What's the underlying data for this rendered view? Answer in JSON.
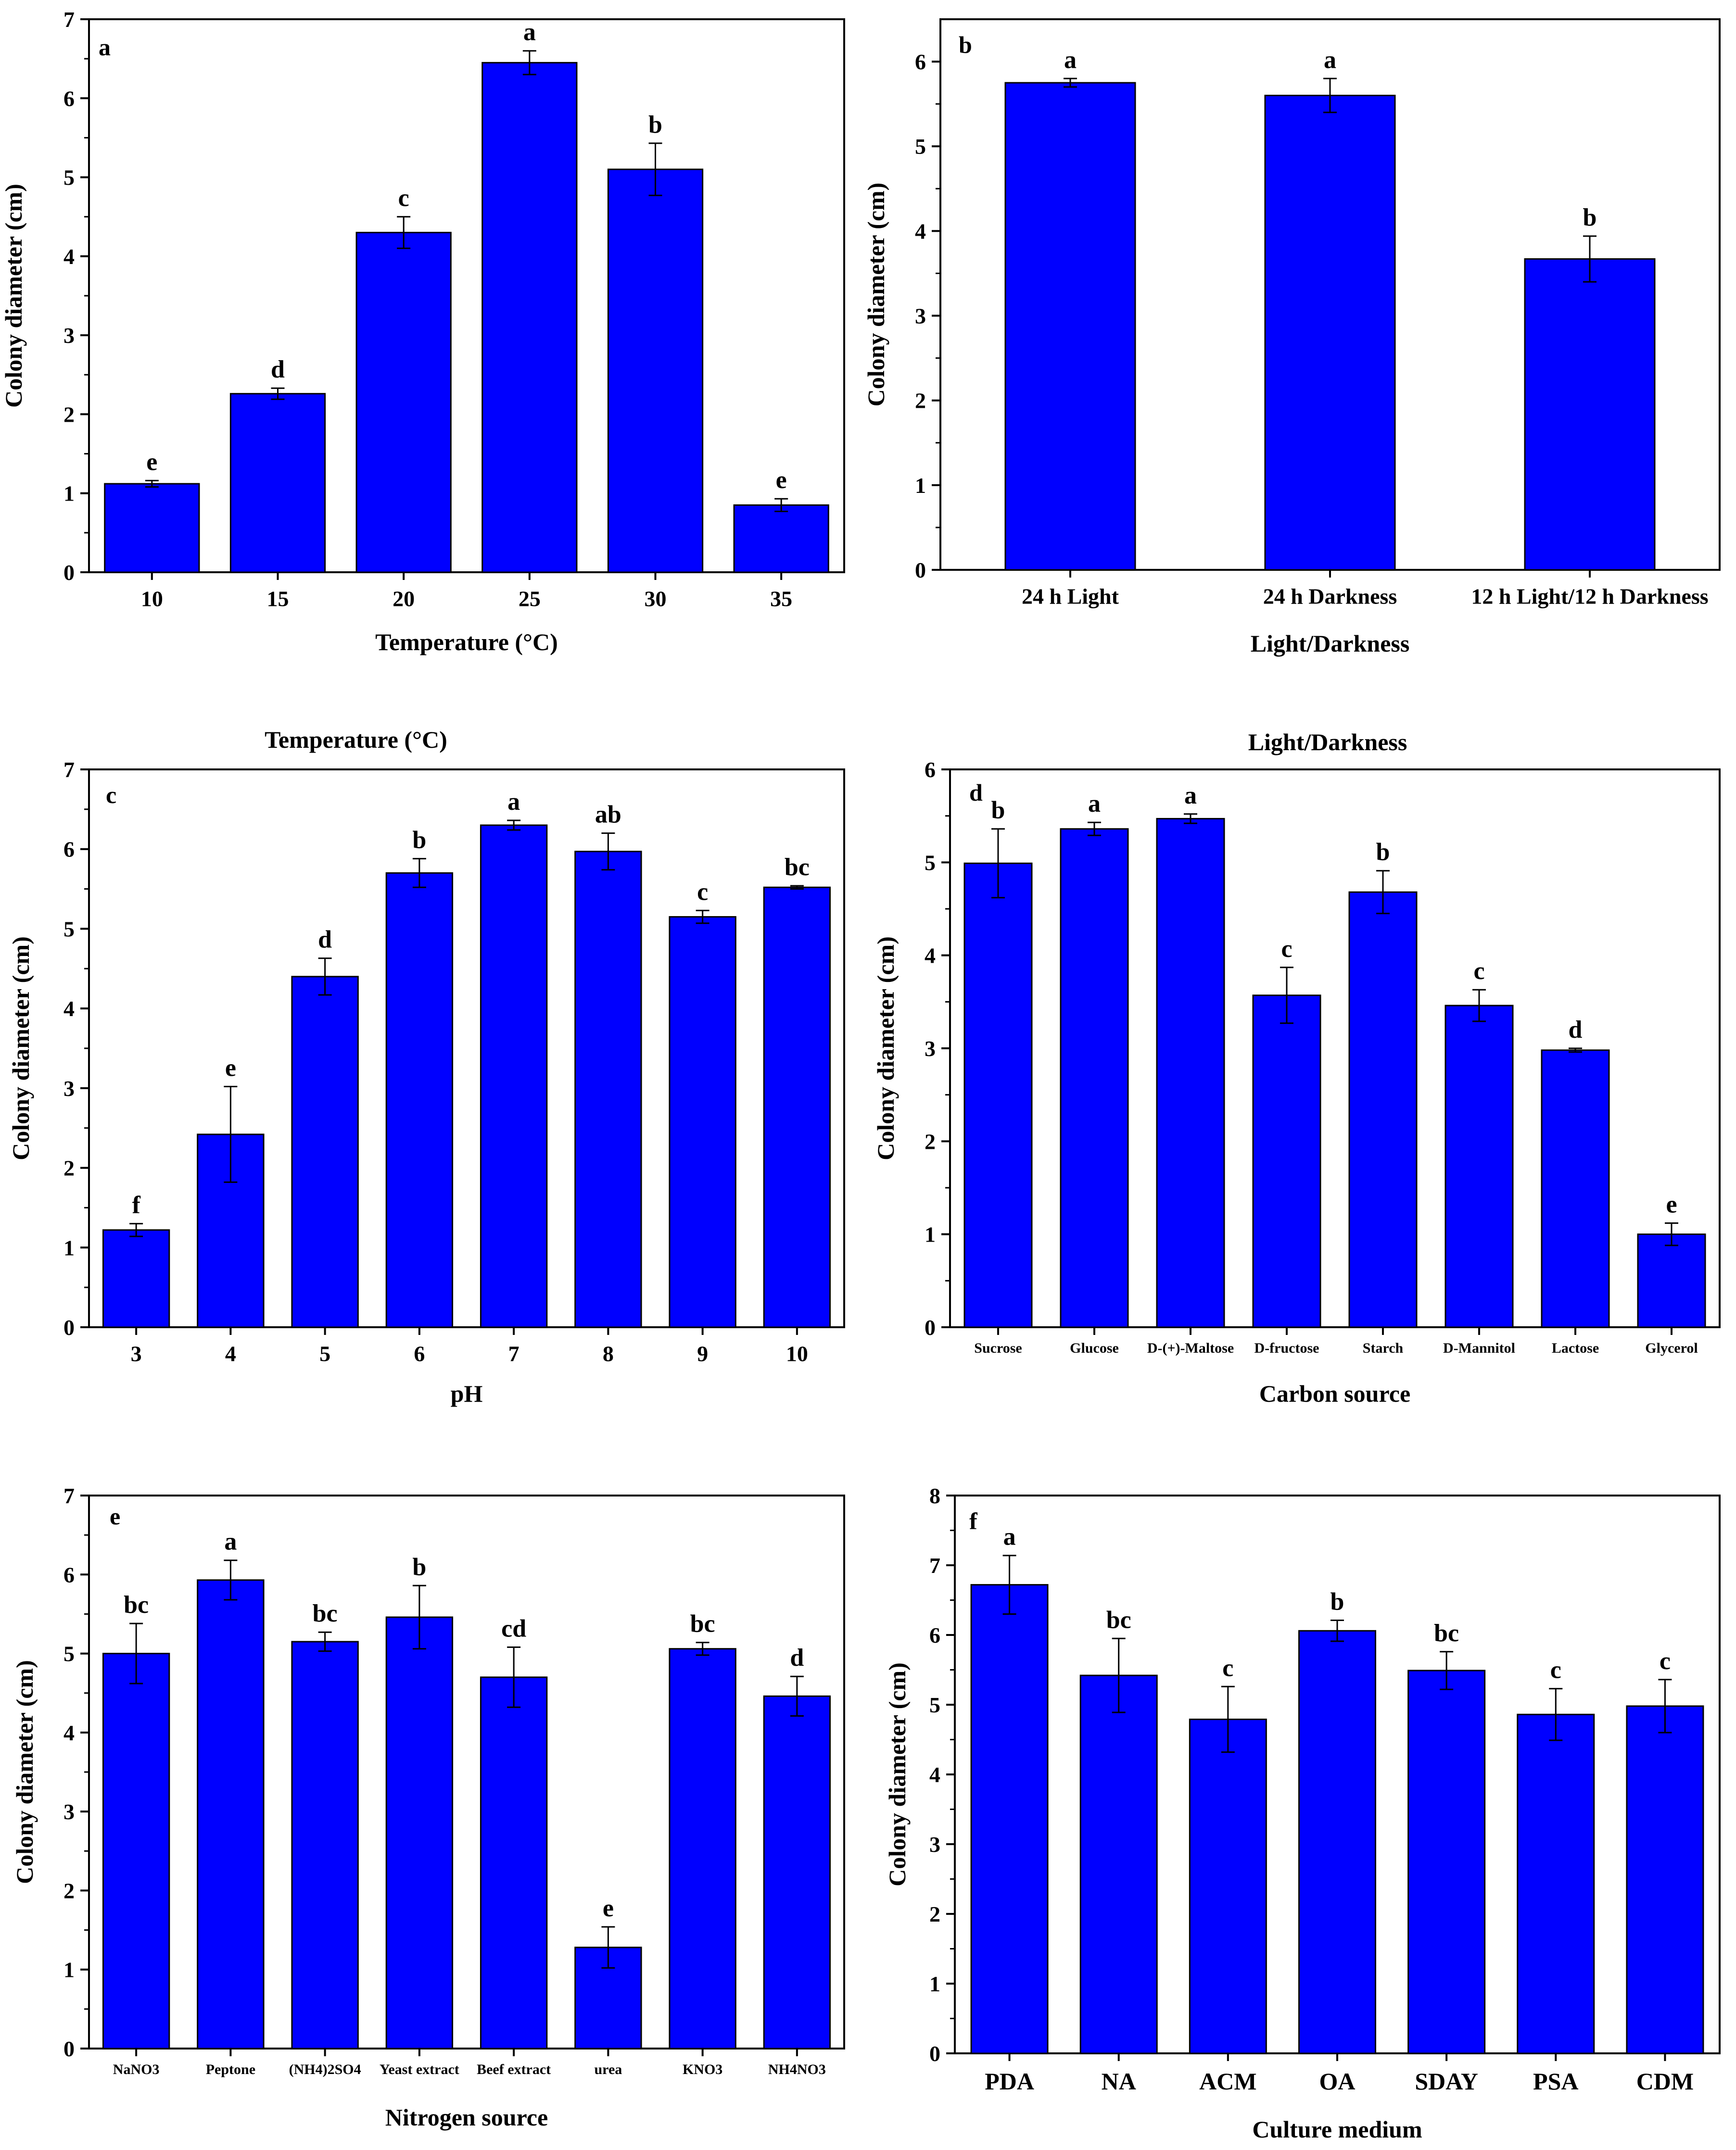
{
  "colors": {
    "bar": "#0000FF",
    "axis": "#000000",
    "background": "#ffffff"
  },
  "extra_titles": {
    "temperature_title": "Temperature (°C)",
    "light_title": "Light/Darkness"
  },
  "chart_data": [
    {
      "type": "bar",
      "panel": "a",
      "xlabel": "Temperature (°C)",
      "ylabel": "Colony diameter (cm)",
      "ylim": [
        0,
        7
      ],
      "yticks": [
        "0",
        "1",
        "2",
        "3",
        "4",
        "5",
        "6",
        "7"
      ],
      "categories": [
        "10",
        "15",
        "20",
        "25",
        "30",
        "35"
      ],
      "values": [
        1.12,
        2.26,
        4.3,
        6.45,
        5.1,
        0.85
      ],
      "errors": [
        0.04,
        0.07,
        0.2,
        0.15,
        0.33,
        0.08
      ],
      "labels": [
        "e",
        "d",
        "c",
        "a",
        "b",
        "e"
      ]
    },
    {
      "type": "bar",
      "panel": "b",
      "xlabel": "Light/Darkness",
      "ylabel": "Colony diameter (cm)",
      "ylim": [
        0,
        6.5
      ],
      "yticks": [
        "0",
        "1",
        "2",
        "3",
        "4",
        "5",
        "6"
      ],
      "categories": [
        "24 h Light",
        "24 h Darkness",
        "12 h Light/12 h Darkness"
      ],
      "values": [
        5.75,
        5.6,
        3.67
      ],
      "errors": [
        0.05,
        0.2,
        0.27
      ],
      "labels": [
        "a",
        "a",
        "b"
      ]
    },
    {
      "type": "bar",
      "panel": "c",
      "xlabel": "pH",
      "ylabel": "Colony diameter (cm)",
      "ylim": [
        0,
        7
      ],
      "yticks": [
        "0",
        "1",
        "2",
        "3",
        "4",
        "5",
        "6",
        "7"
      ],
      "categories": [
        "3",
        "4",
        "5",
        "6",
        "7",
        "8",
        "9",
        "10"
      ],
      "values": [
        1.22,
        2.42,
        4.4,
        5.7,
        6.3,
        5.97,
        5.15,
        5.52
      ],
      "errors": [
        0.08,
        0.6,
        0.23,
        0.18,
        0.06,
        0.23,
        0.08,
        0.02
      ],
      "labels": [
        "f",
        "e",
        "d",
        "b",
        "a",
        "ab",
        "c",
        "bc"
      ]
    },
    {
      "type": "bar",
      "panel": "d",
      "xlabel": "Carbon source",
      "ylabel": "Colony diameter (cm)",
      "ylim": [
        0,
        6
      ],
      "yticks": [
        "0",
        "1",
        "2",
        "3",
        "4",
        "5",
        "6"
      ],
      "categories": [
        "Sucrose",
        "Glucose",
        "D-(+)-Maltose",
        "D-fructose",
        "Starch",
        "D-Mannitol",
        "Lactose",
        "Glycerol"
      ],
      "values": [
        4.99,
        5.36,
        5.47,
        3.57,
        4.68,
        3.46,
        2.98,
        1.0
      ],
      "errors": [
        0.37,
        0.07,
        0.05,
        0.3,
        0.23,
        0.17,
        0.02,
        0.12
      ],
      "labels": [
        "b",
        "a",
        "a",
        "c",
        "b",
        "c",
        "d",
        "e"
      ]
    },
    {
      "type": "bar",
      "panel": "e",
      "xlabel": "Nitrogen source",
      "ylabel": "Colony diameter (cm)",
      "ylim": [
        0,
        7
      ],
      "yticks": [
        "0",
        "1",
        "2",
        "3",
        "4",
        "5",
        "6",
        "7"
      ],
      "categories": [
        "NaNO3",
        "Peptone",
        "(NH4)2SO4",
        "Yeast extract",
        "Beef extract",
        "urea",
        "KNO3",
        "NH4NO3"
      ],
      "values": [
        5.0,
        5.93,
        5.15,
        5.46,
        4.7,
        1.28,
        5.06,
        4.46
      ],
      "errors": [
        0.38,
        0.25,
        0.12,
        0.4,
        0.38,
        0.26,
        0.08,
        0.25
      ],
      "labels": [
        "bc",
        "a",
        "bc",
        "b",
        "cd",
        "e",
        "bc",
        "d"
      ]
    },
    {
      "type": "bar",
      "panel": "f",
      "xlabel": "Culture medium",
      "ylabel": "Colony diameter (cm)",
      "ylim": [
        0,
        8
      ],
      "yticks": [
        "0",
        "1",
        "2",
        "3",
        "4",
        "5",
        "6",
        "7",
        "8"
      ],
      "categories": [
        "PDA",
        "NA",
        "ACM",
        "OA",
        "SDAY",
        "PSA",
        "CDM"
      ],
      "values": [
        6.72,
        5.42,
        4.79,
        6.06,
        5.49,
        4.86,
        4.98
      ],
      "errors": [
        0.42,
        0.53,
        0.47,
        0.15,
        0.27,
        0.37,
        0.38
      ],
      "labels": [
        "a",
        "bc",
        "c",
        "b",
        "bc",
        "c",
        "c"
      ]
    }
  ]
}
